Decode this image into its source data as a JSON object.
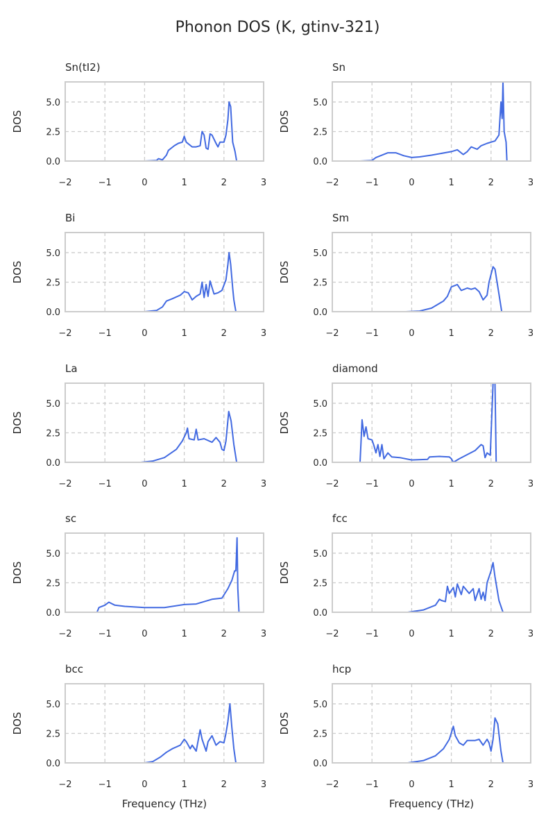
{
  "chart_data": {
    "type": "line",
    "title": "Phonon DOS (K, gtinv-321)",
    "xlabel": "Frequency (THz)",
    "ylabel": "DOS",
    "xlim": [
      -2,
      3
    ],
    "ylim": [
      0,
      6.7
    ],
    "xticks": [
      "−2",
      "−1",
      "0",
      "1",
      "2",
      "3"
    ],
    "xtick_values": [
      -2,
      -1,
      0,
      1,
      2,
      3
    ],
    "yticks": [
      "0.0",
      "2.5",
      "5.0"
    ],
    "ytick_values": [
      0,
      2.5,
      5.0
    ],
    "grid": true,
    "color": "#4169e1",
    "panels": [
      {
        "title": "Sn(tI2)",
        "points": [
          [
            0,
            0
          ],
          [
            0.3,
            0.05
          ],
          [
            0.35,
            0.2
          ],
          [
            0.45,
            0.1
          ],
          [
            0.55,
            0.5
          ],
          [
            0.6,
            0.9
          ],
          [
            0.75,
            1.3
          ],
          [
            0.85,
            1.5
          ],
          [
            0.95,
            1.6
          ],
          [
            1.0,
            2.1
          ],
          [
            1.05,
            1.6
          ],
          [
            1.2,
            1.2
          ],
          [
            1.3,
            1.2
          ],
          [
            1.4,
            1.3
          ],
          [
            1.45,
            2.5
          ],
          [
            1.5,
            2.2
          ],
          [
            1.55,
            1.1
          ],
          [
            1.6,
            1.0
          ],
          [
            1.65,
            2.3
          ],
          [
            1.7,
            2.2
          ],
          [
            1.8,
            1.5
          ],
          [
            1.85,
            1.2
          ],
          [
            1.9,
            1.6
          ],
          [
            2.0,
            1.6
          ],
          [
            2.05,
            2.2
          ],
          [
            2.1,
            3.5
          ],
          [
            2.13,
            5.0
          ],
          [
            2.17,
            4.6
          ],
          [
            2.22,
            1.6
          ],
          [
            2.28,
            0.8
          ],
          [
            2.32,
            0
          ],
          [
            2.5,
            0
          ]
        ]
      },
      {
        "title": "Sn",
        "points": [
          [
            -1.3,
            0
          ],
          [
            -1,
            0.05
          ],
          [
            -0.9,
            0.3
          ],
          [
            -0.6,
            0.7
          ],
          [
            -0.4,
            0.7
          ],
          [
            -0.2,
            0.45
          ],
          [
            0,
            0.3
          ],
          [
            0.2,
            0.35
          ],
          [
            0.5,
            0.5
          ],
          [
            1.0,
            0.8
          ],
          [
            1.15,
            0.95
          ],
          [
            1.3,
            0.55
          ],
          [
            1.4,
            0.8
          ],
          [
            1.5,
            1.2
          ],
          [
            1.65,
            1.0
          ],
          [
            1.75,
            1.3
          ],
          [
            1.9,
            1.5
          ],
          [
            2.1,
            1.7
          ],
          [
            2.2,
            2.2
          ],
          [
            2.25,
            5.0
          ],
          [
            2.28,
            3.6
          ],
          [
            2.3,
            6.7
          ],
          [
            2.33,
            2.5
          ],
          [
            2.38,
            1.6
          ],
          [
            2.4,
            0
          ],
          [
            2.7,
            0
          ]
        ]
      },
      {
        "title": "Bi",
        "points": [
          [
            0,
            0
          ],
          [
            0.3,
            0.1
          ],
          [
            0.45,
            0.4
          ],
          [
            0.55,
            0.9
          ],
          [
            0.7,
            1.1
          ],
          [
            0.9,
            1.4
          ],
          [
            1.0,
            1.7
          ],
          [
            1.1,
            1.6
          ],
          [
            1.15,
            1.3
          ],
          [
            1.2,
            1.0
          ],
          [
            1.3,
            1.3
          ],
          [
            1.4,
            1.5
          ],
          [
            1.45,
            2.5
          ],
          [
            1.5,
            1.2
          ],
          [
            1.55,
            2.3
          ],
          [
            1.6,
            1.3
          ],
          [
            1.65,
            2.6
          ],
          [
            1.75,
            1.5
          ],
          [
            1.85,
            1.6
          ],
          [
            1.95,
            1.8
          ],
          [
            2.05,
            2.7
          ],
          [
            2.1,
            4.0
          ],
          [
            2.13,
            5.0
          ],
          [
            2.17,
            4.0
          ],
          [
            2.22,
            2.0
          ],
          [
            2.25,
            1.0
          ],
          [
            2.3,
            0
          ],
          [
            2.5,
            0
          ]
        ]
      },
      {
        "title": "Sm",
        "points": [
          [
            -0.15,
            0
          ],
          [
            0.2,
            0.05
          ],
          [
            0.5,
            0.3
          ],
          [
            0.8,
            0.9
          ],
          [
            0.9,
            1.3
          ],
          [
            1.0,
            2.1
          ],
          [
            1.15,
            2.3
          ],
          [
            1.25,
            1.8
          ],
          [
            1.4,
            2.0
          ],
          [
            1.5,
            1.9
          ],
          [
            1.6,
            2.0
          ],
          [
            1.7,
            1.7
          ],
          [
            1.8,
            1.0
          ],
          [
            1.9,
            1.4
          ],
          [
            1.95,
            2.5
          ],
          [
            2.05,
            3.8
          ],
          [
            2.1,
            3.6
          ],
          [
            2.2,
            1.5
          ],
          [
            2.27,
            0
          ],
          [
            2.5,
            0
          ]
        ]
      },
      {
        "title": "La",
        "points": [
          [
            -0.1,
            0
          ],
          [
            0.2,
            0.1
          ],
          [
            0.5,
            0.4
          ],
          [
            0.8,
            1.1
          ],
          [
            0.95,
            1.8
          ],
          [
            1.05,
            2.5
          ],
          [
            1.08,
            2.9
          ],
          [
            1.12,
            2.0
          ],
          [
            1.25,
            1.9
          ],
          [
            1.3,
            2.8
          ],
          [
            1.35,
            1.9
          ],
          [
            1.5,
            2.0
          ],
          [
            1.7,
            1.7
          ],
          [
            1.8,
            2.1
          ],
          [
            1.9,
            1.7
          ],
          [
            1.95,
            1.1
          ],
          [
            2.0,
            1.0
          ],
          [
            2.05,
            1.8
          ],
          [
            2.12,
            4.3
          ],
          [
            2.18,
            3.5
          ],
          [
            2.25,
            1.5
          ],
          [
            2.32,
            0
          ],
          [
            2.5,
            0
          ]
        ]
      },
      {
        "title": "diamond",
        "points": [
          [
            -1.6,
            0
          ],
          [
            -1.3,
            0
          ],
          [
            -1.25,
            3.6
          ],
          [
            -1.2,
            2.2
          ],
          [
            -1.15,
            3.0
          ],
          [
            -1.1,
            2.0
          ],
          [
            -1.0,
            1.9
          ],
          [
            -0.95,
            1.4
          ],
          [
            -0.9,
            0.8
          ],
          [
            -0.85,
            1.5
          ],
          [
            -0.8,
            0.5
          ],
          [
            -0.75,
            1.5
          ],
          [
            -0.7,
            0.3
          ],
          [
            -0.6,
            0.8
          ],
          [
            -0.5,
            0.45
          ],
          [
            -0.3,
            0.4
          ],
          [
            0,
            0.2
          ],
          [
            0.4,
            0.25
          ],
          [
            0.45,
            0.45
          ],
          [
            0.7,
            0.5
          ],
          [
            0.95,
            0.45
          ],
          [
            1.0,
            0.3
          ],
          [
            1.05,
            0
          ],
          [
            1.2,
            0.3
          ],
          [
            1.6,
            1.0
          ],
          [
            1.75,
            1.5
          ],
          [
            1.8,
            1.4
          ],
          [
            1.85,
            0.4
          ],
          [
            1.9,
            0.8
          ],
          [
            1.98,
            0.6
          ],
          [
            2.05,
            6.7
          ],
          [
            2.1,
            6.7
          ],
          [
            2.13,
            0
          ],
          [
            2.5,
            0
          ]
        ]
      },
      {
        "title": "sc",
        "points": [
          [
            -1.5,
            0
          ],
          [
            -1.2,
            0
          ],
          [
            -1.15,
            0.4
          ],
          [
            -1.0,
            0.6
          ],
          [
            -0.9,
            0.85
          ],
          [
            -0.75,
            0.6
          ],
          [
            -0.5,
            0.5
          ],
          [
            0,
            0.4
          ],
          [
            0.5,
            0.4
          ],
          [
            1.0,
            0.65
          ],
          [
            1.3,
            0.7
          ],
          [
            1.5,
            0.9
          ],
          [
            1.7,
            1.1
          ],
          [
            1.95,
            1.2
          ],
          [
            2.1,
            2.0
          ],
          [
            2.2,
            2.7
          ],
          [
            2.27,
            3.5
          ],
          [
            2.3,
            3.5
          ],
          [
            2.33,
            6.3
          ],
          [
            2.35,
            2.0
          ],
          [
            2.38,
            0
          ],
          [
            2.6,
            0
          ]
        ]
      },
      {
        "title": "fcc",
        "points": [
          [
            -0.1,
            0
          ],
          [
            0.3,
            0.2
          ],
          [
            0.6,
            0.6
          ],
          [
            0.7,
            1.1
          ],
          [
            0.75,
            1.0
          ],
          [
            0.85,
            0.9
          ],
          [
            0.9,
            2.2
          ],
          [
            0.95,
            1.6
          ],
          [
            1.05,
            2.1
          ],
          [
            1.1,
            1.3
          ],
          [
            1.15,
            2.4
          ],
          [
            1.25,
            1.5
          ],
          [
            1.3,
            2.2
          ],
          [
            1.45,
            1.6
          ],
          [
            1.55,
            2.0
          ],
          [
            1.6,
            1.0
          ],
          [
            1.7,
            2.0
          ],
          [
            1.75,
            1.1
          ],
          [
            1.8,
            1.7
          ],
          [
            1.85,
            1.0
          ],
          [
            1.9,
            2.5
          ],
          [
            2.0,
            3.5
          ],
          [
            2.05,
            4.2
          ],
          [
            2.1,
            3.0
          ],
          [
            2.2,
            1.0
          ],
          [
            2.3,
            0
          ],
          [
            2.5,
            0
          ]
        ]
      },
      {
        "title": "bcc",
        "points": [
          [
            0,
            0
          ],
          [
            0.2,
            0.1
          ],
          [
            0.4,
            0.5
          ],
          [
            0.55,
            0.9
          ],
          [
            0.7,
            1.2
          ],
          [
            0.9,
            1.5
          ],
          [
            1.0,
            2.0
          ],
          [
            1.05,
            1.8
          ],
          [
            1.15,
            1.2
          ],
          [
            1.2,
            1.5
          ],
          [
            1.3,
            1.0
          ],
          [
            1.4,
            2.8
          ],
          [
            1.45,
            2.0
          ],
          [
            1.55,
            1.0
          ],
          [
            1.6,
            1.8
          ],
          [
            1.7,
            2.3
          ],
          [
            1.8,
            1.5
          ],
          [
            1.9,
            1.8
          ],
          [
            2.0,
            1.7
          ],
          [
            2.05,
            2.5
          ],
          [
            2.1,
            3.5
          ],
          [
            2.15,
            5.0
          ],
          [
            2.2,
            3.0
          ],
          [
            2.25,
            1.2
          ],
          [
            2.3,
            0
          ],
          [
            2.5,
            0
          ]
        ]
      },
      {
        "title": "hcp",
        "points": [
          [
            -0.1,
            0
          ],
          [
            0.3,
            0.2
          ],
          [
            0.6,
            0.6
          ],
          [
            0.8,
            1.2
          ],
          [
            0.95,
            2.0
          ],
          [
            1.05,
            3.1
          ],
          [
            1.1,
            2.3
          ],
          [
            1.2,
            1.7
          ],
          [
            1.3,
            1.5
          ],
          [
            1.4,
            1.9
          ],
          [
            1.6,
            1.9
          ],
          [
            1.7,
            2.0
          ],
          [
            1.8,
            1.5
          ],
          [
            1.9,
            2.0
          ],
          [
            1.95,
            1.7
          ],
          [
            2.0,
            1.0
          ],
          [
            2.05,
            2.0
          ],
          [
            2.1,
            3.8
          ],
          [
            2.17,
            3.3
          ],
          [
            2.25,
            1.0
          ],
          [
            2.3,
            0
          ],
          [
            2.5,
            0
          ]
        ]
      }
    ]
  }
}
